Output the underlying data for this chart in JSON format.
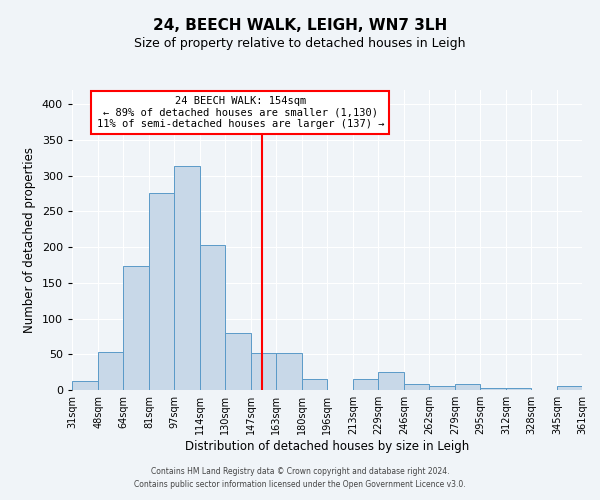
{
  "title": "24, BEECH WALK, LEIGH, WN7 3LH",
  "subtitle": "Size of property relative to detached houses in Leigh",
  "xlabel": "Distribution of detached houses by size in Leigh",
  "ylabel": "Number of detached properties",
  "bar_color": "#c8d8e8",
  "bar_edge_color": "#5a9ac8",
  "background_color": "#f0f4f8",
  "grid_color": "#ffffff",
  "vline_value": 154,
  "vline_color": "red",
  "annotation_title": "24 BEECH WALK: 154sqm",
  "annotation_line1": "← 89% of detached houses are smaller (1,130)",
  "annotation_line2": "11% of semi-detached houses are larger (137) →",
  "bin_edges": [
    31,
    48,
    64,
    81,
    97,
    114,
    130,
    147,
    163,
    180,
    196,
    213,
    229,
    246,
    262,
    279,
    295,
    312,
    328,
    345,
    361
  ],
  "bin_labels": [
    "31sqm",
    "48sqm",
    "64sqm",
    "81sqm",
    "97sqm",
    "114sqm",
    "130sqm",
    "147sqm",
    "163sqm",
    "180sqm",
    "196sqm",
    "213sqm",
    "229sqm",
    "246sqm",
    "262sqm",
    "279sqm",
    "295sqm",
    "312sqm",
    "328sqm",
    "345sqm",
    "361sqm"
  ],
  "bar_heights": [
    12,
    53,
    174,
    276,
    313,
    203,
    80,
    52,
    52,
    16,
    0,
    15,
    25,
    8,
    5,
    8,
    3,
    3,
    0,
    5
  ],
  "ylim": [
    0,
    420
  ],
  "yticks": [
    0,
    50,
    100,
    150,
    200,
    250,
    300,
    350,
    400
  ],
  "footer_line1": "Contains HM Land Registry data © Crown copyright and database right 2024.",
  "footer_line2": "Contains public sector information licensed under the Open Government Licence v3.0."
}
